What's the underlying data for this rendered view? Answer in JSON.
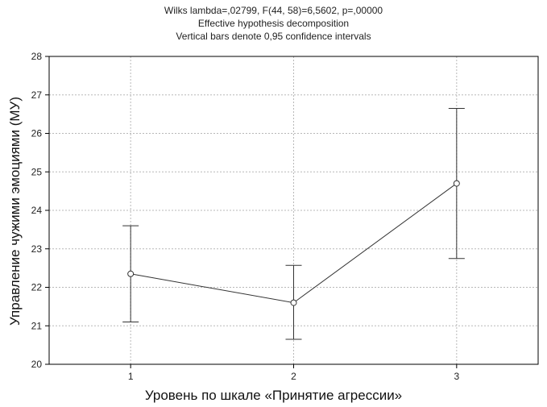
{
  "chart_data": {
    "type": "line",
    "title_lines": [
      "Wilks lambda=,02799, F(44, 58)=6,5602, p=,00000",
      "Effective hypothesis decomposition",
      "Vertical bars denote 0,95 confidence intervals"
    ],
    "xlabel": "Уровень по шкале «Принятие агрессии»",
    "ylabel": "Управление чужими эмоциями (МУ)",
    "categories": [
      "1",
      "2",
      "3"
    ],
    "xlim": [
      0.5,
      3.5
    ],
    "ylim": [
      20,
      28
    ],
    "yticks": [
      20,
      21,
      22,
      23,
      24,
      25,
      26,
      27,
      28
    ],
    "grid": true,
    "series": [
      {
        "values": [
          22.35,
          21.6,
          24.7
        ],
        "ci_lower": [
          21.1,
          20.65,
          22.75
        ],
        "ci_upper": [
          23.6,
          22.57,
          26.65
        ]
      }
    ],
    "colors": {
      "line": "#333333",
      "grid": "#b8b8b8",
      "axis": "#000000"
    }
  }
}
